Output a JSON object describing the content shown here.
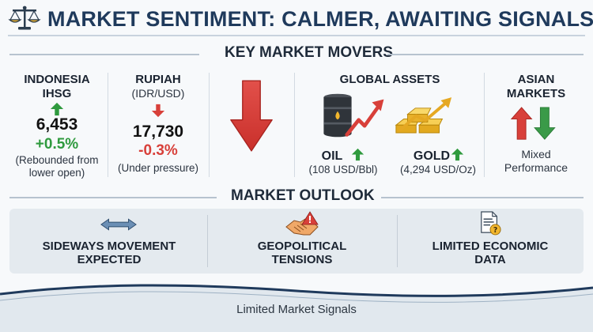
{
  "header": {
    "title": "MARKET SENTIMENT: CALMER, AWAITING SIGNALS",
    "icon": "scale-icon"
  },
  "movers": {
    "heading": "KEY MARKET MOVERS",
    "ihsg": {
      "name_line1": "INDONESIA",
      "name_line2": "IHSG",
      "value": "6,453",
      "change": "+0.5%",
      "note_line1": "(Rebounded from",
      "note_line2": "lower open)",
      "trend_icon": "arrow-up-icon"
    },
    "rupiah": {
      "name": "RUPIAH",
      "sub": "(IDR/USD)",
      "value": "17,730",
      "change": "-0.3%",
      "note": "(Under pressure)",
      "trend_icon": "arrow-down-icon"
    },
    "global_assets": {
      "heading": "GLOBAL ASSETS",
      "oil_label": "OIL",
      "oil_price": "(108 USD/Bbl)",
      "gold_label": "GOLD",
      "gold_price": "(4,294 USD/Oz)"
    },
    "asian": {
      "name_line1": "ASIAN",
      "name_line2": "MARKETS",
      "note_line1": "Mixed",
      "note_line2": "Performance"
    }
  },
  "outlook": {
    "heading": "MARKET OUTLOOK",
    "items": [
      {
        "line1": "SIDEWAYS MOVEMENT",
        "line2": "EXPECTED",
        "icon": "sideways-arrow-icon"
      },
      {
        "line1": "GEOPOLITICAL",
        "line2": "TENSIONS",
        "icon": "handshake-warning-icon"
      },
      {
        "line1": "LIMITED ECONOMIC",
        "line2": "DATA",
        "icon": "document-question-icon"
      }
    ]
  },
  "footer": {
    "text": "Limited Market Signals"
  },
  "colors": {
    "title": "#1f3a5c",
    "positive": "#2f9a3e",
    "negative": "#d8403a",
    "band": "#e4eaef",
    "footer_wave": "#1f3a5c"
  }
}
